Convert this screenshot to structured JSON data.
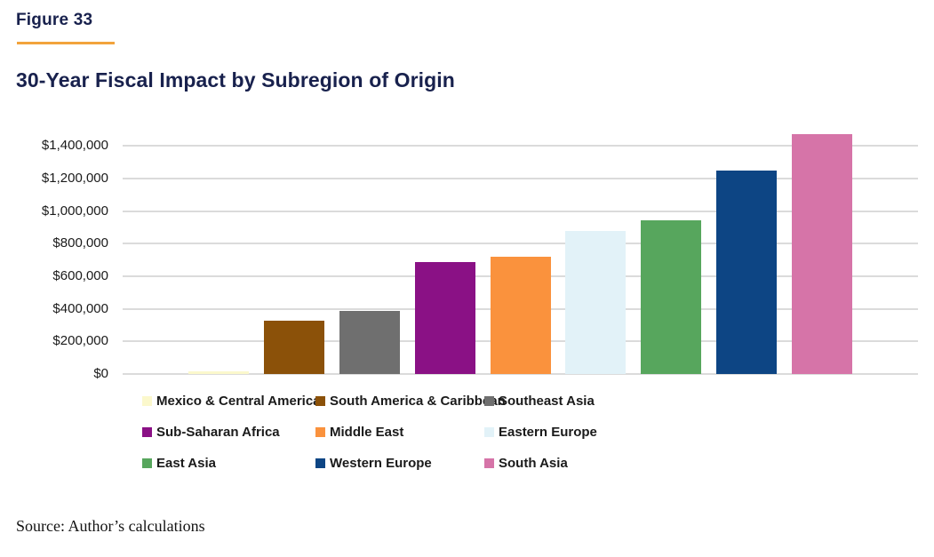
{
  "figure_label": "Figure 33",
  "title": "30-Year Fiscal Impact by Subregion of Origin",
  "source_note": "Source: Author’s calculations",
  "colors": {
    "heading_navy": "#18214D",
    "accent_rule_orange": "#F2A33C",
    "axis_text": "#1A1A1A",
    "gridline": "#DBDBDB",
    "legend_text": "#1A1A1A",
    "background": "#FFFFFF"
  },
  "chart_data": {
    "type": "bar",
    "title": "30-Year Fiscal Impact by Subregion of Origin",
    "xlabel": "",
    "ylabel": "",
    "categories": [
      "Mexico & Central America",
      "South America & Caribbean",
      "Southeast Asia",
      "Sub-Saharan Africa",
      "Middle East",
      "Eastern Europe",
      "East Asia",
      "Western Europe",
      "South Asia"
    ],
    "values": [
      15000,
      330000,
      385000,
      690000,
      720000,
      880000,
      945000,
      1250000,
      1475000
    ],
    "bar_colors": [
      "#FBF8CC",
      "#8B5109",
      "#6F6F6F",
      "#8A1185",
      "#FA923D",
      "#E2F2F8",
      "#57A65D",
      "#0D4584",
      "#D674A8"
    ],
    "ylim": [
      0,
      1500000
    ],
    "ytick_interval": 200000,
    "ytick_labels": [
      "$0",
      "$200,000",
      "$400,000",
      "$600,000",
      "$800,000",
      "$1,000,000",
      "$1,200,000",
      "$1,400,000"
    ],
    "grid": "horizontal-only",
    "legend_position": "bottom",
    "x_axis_labels_shown": false
  }
}
